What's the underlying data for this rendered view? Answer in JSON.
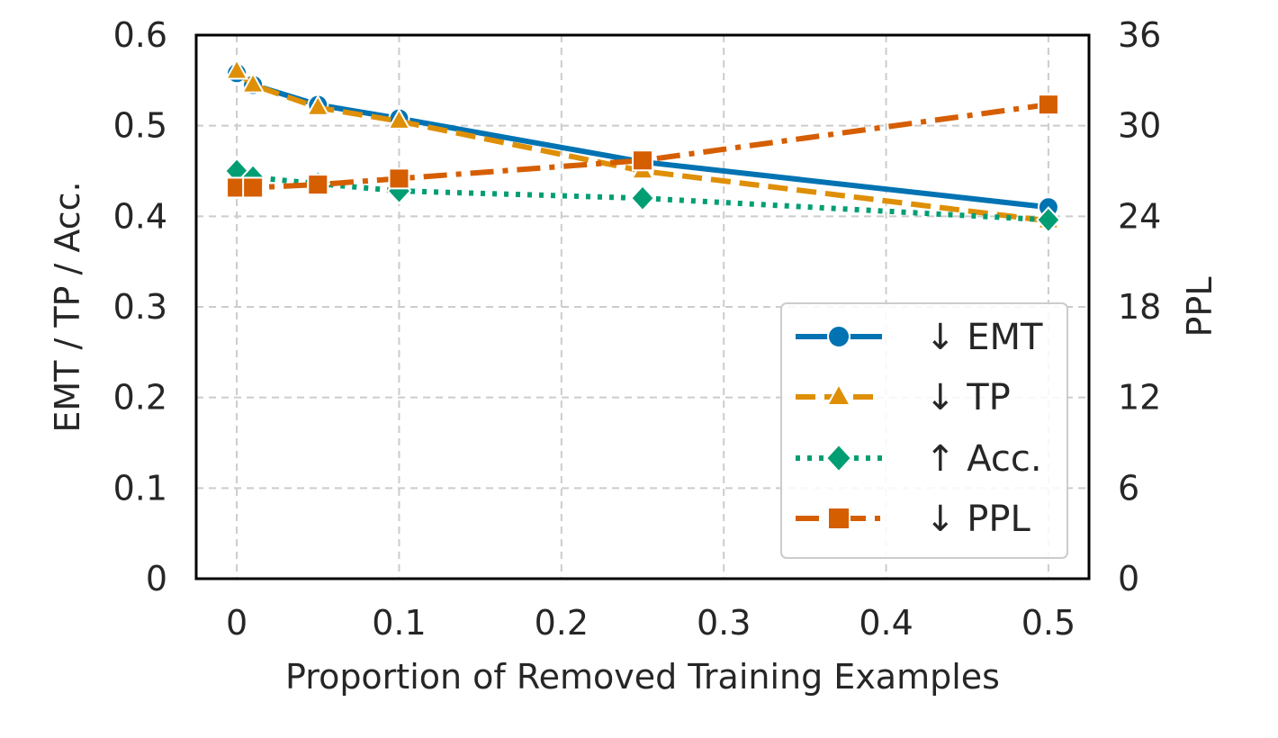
{
  "chart_data": {
    "type": "line",
    "xlabel": "Proportion of Removed Training Examples",
    "ylabel_left": "EMT / TP / Acc.",
    "ylabel_right": "PPL",
    "xlim": [
      -0.025,
      0.525
    ],
    "ylim_left": [
      0,
      0.6
    ],
    "ylim_right": [
      0,
      36
    ],
    "x_ticks": [
      0,
      0.1,
      0.2,
      0.3,
      0.4,
      0.5
    ],
    "x_tick_labels": [
      "0",
      "0.1",
      "0.2",
      "0.3",
      "0.4",
      "0.5"
    ],
    "y_left_ticks": [
      0,
      0.1,
      0.2,
      0.3,
      0.4,
      0.5,
      0.6
    ],
    "y_left_tick_labels": [
      "0",
      "0.1",
      "0.2",
      "0.3",
      "0.4",
      "0.5",
      "0.6"
    ],
    "y_right_ticks": [
      0,
      6,
      12,
      18,
      24,
      30,
      36
    ],
    "y_right_tick_labels": [
      "0",
      "6",
      "12",
      "18",
      "24",
      "30",
      "36"
    ],
    "grid": true,
    "legend_position": "bottom-right",
    "series": [
      {
        "name": "↓ EMT",
        "axis": "left",
        "color": "#0173b2",
        "marker": "circle",
        "line_style": "solid",
        "x": [
          0,
          0.01,
          0.05,
          0.1,
          0.25,
          0.5
        ],
        "y": [
          0.558,
          0.545,
          0.523,
          0.508,
          0.46,
          0.41
        ]
      },
      {
        "name": "↓ TP",
        "axis": "left",
        "color": "#de8f05",
        "marker": "triangle",
        "line_style": "dashed",
        "x": [
          0,
          0.01,
          0.05,
          0.1,
          0.25,
          0.5
        ],
        "y": [
          0.56,
          0.545,
          0.52,
          0.505,
          0.45,
          0.395
        ]
      },
      {
        "name": "↑ Acc.",
        "axis": "left",
        "color": "#029e73",
        "marker": "diamond",
        "line_style": "dotted",
        "x": [
          0,
          0.01,
          0.05,
          0.1,
          0.25,
          0.5
        ],
        "y": [
          0.45,
          0.443,
          0.436,
          0.428,
          0.42,
          0.396
        ]
      },
      {
        "name": "↓ PPL",
        "axis": "right",
        "color": "#d55e00",
        "marker": "square",
        "line_style": "dashdot",
        "x": [
          0,
          0.01,
          0.05,
          0.1,
          0.25,
          0.5
        ],
        "y": [
          25.9,
          25.9,
          26.1,
          26.5,
          27.7,
          31.4
        ]
      }
    ]
  }
}
